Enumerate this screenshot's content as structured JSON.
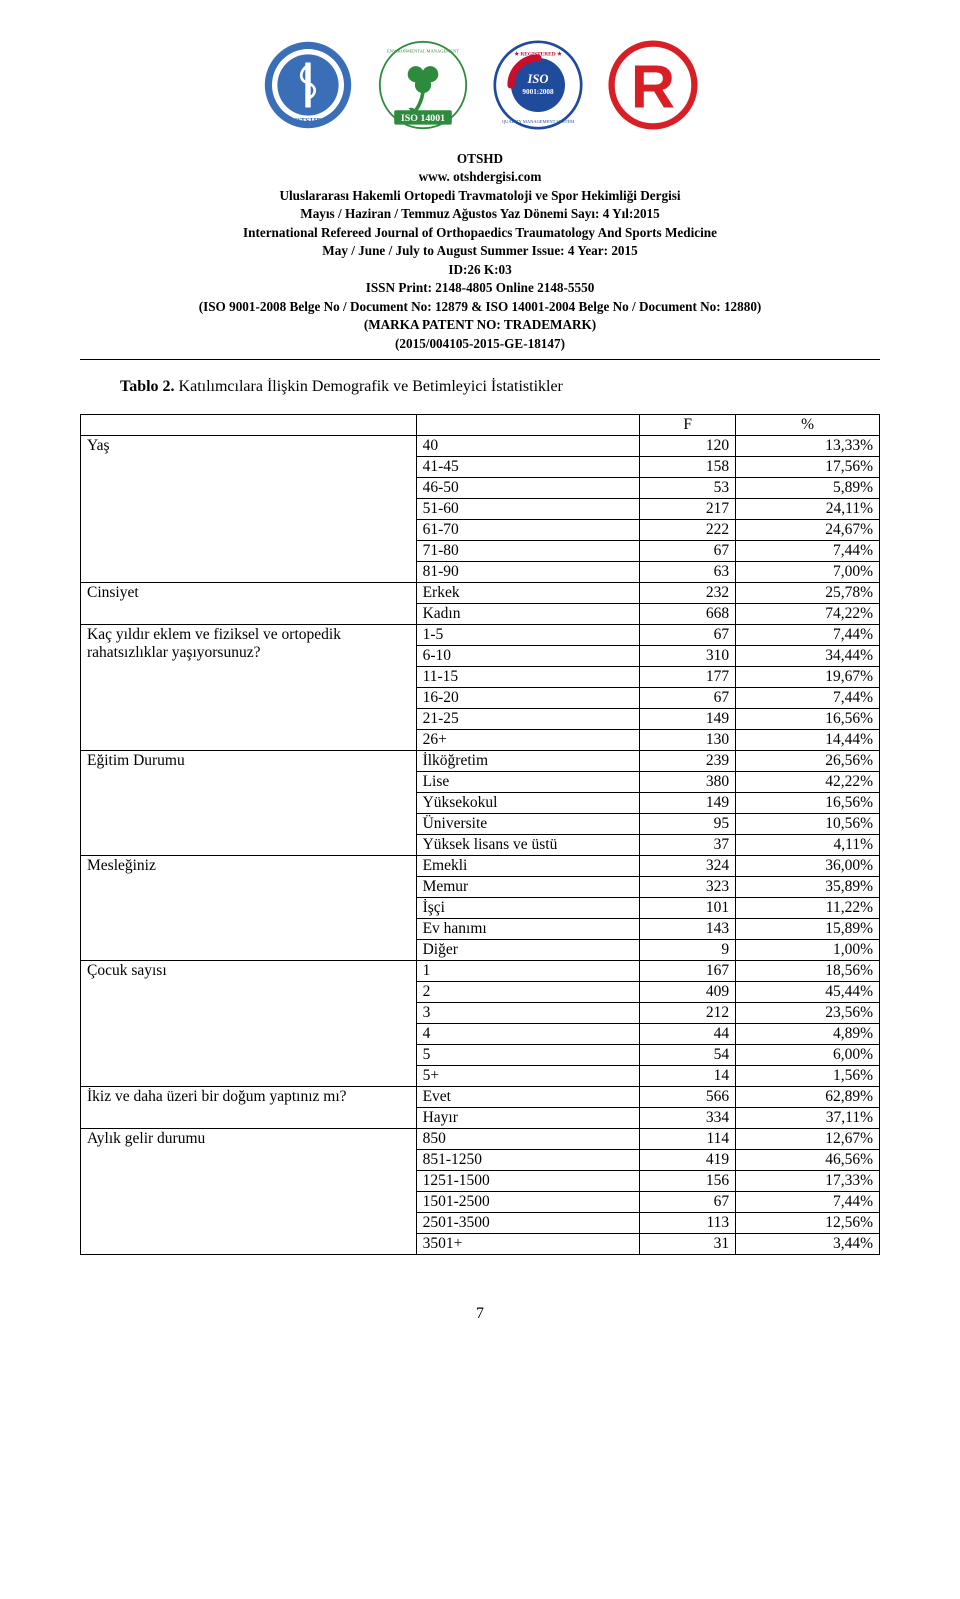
{
  "header": {
    "otshd": "OTSHD",
    "site": "www. otshdergisi.com",
    "line1": "Uluslararası Hakemli Ortopedi Travmatoloji ve Spor Hekimliği Dergisi",
    "line2": "Mayıs / Haziran / Temmuz  Ağustos Yaz Dönemi Sayı: 4 Yıl:2015",
    "line3": "International Refereed Journal of Orthopaedics Traumatology And Sports Medicine",
    "line4": "May / June / July to August Summer Issue: 4 Year: 2015",
    "id": "ID:26 K:03",
    "issn": "ISSN Print: 2148-4805 Online 2148-5550",
    "iso": "(ISO 9001-2008 Belge No / Document No: 12879 & ISO 14001-2004 Belge No / Document No: 12880)",
    "marka": "(MARKA PATENT NO: TRADEMARK)",
    "code": "(2015/004105-2015-GE-18147)"
  },
  "table_caption": {
    "label": "Tablo 2.",
    "text": " Katılımcılara İlişkin Demografik ve Betimleyici İstatistikler"
  },
  "table": {
    "header": {
      "f": "F",
      "p": "%"
    },
    "groups": [
      {
        "label": "Yaş",
        "rows": [
          {
            "cat": "40",
            "f": "120",
            "p": "13,33%"
          },
          {
            "cat": "41-45",
            "f": "158",
            "p": "17,56%"
          },
          {
            "cat": "46-50",
            "f": "53",
            "p": "5,89%"
          },
          {
            "cat": "51-60",
            "f": "217",
            "p": "24,11%"
          },
          {
            "cat": "61-70",
            "f": "222",
            "p": "24,67%"
          },
          {
            "cat": "71-80",
            "f": "67",
            "p": "7,44%"
          },
          {
            "cat": "81-90",
            "f": "63",
            "p": "7,00%"
          }
        ]
      },
      {
        "label": "Cinsiyet",
        "rows": [
          {
            "cat": "Erkek",
            "f": "232",
            "p": "25,78%"
          },
          {
            "cat": "Kadın",
            "f": "668",
            "p": "74,22%"
          }
        ]
      },
      {
        "label": "Kaç yıldır eklem ve fiziksel ve ortopedik rahatsızlıklar yaşıyorsunuz?",
        "rows": [
          {
            "cat": "1-5",
            "f": "67",
            "p": "7,44%"
          },
          {
            "cat": "6-10",
            "f": "310",
            "p": "34,44%"
          },
          {
            "cat": "11-15",
            "f": "177",
            "p": "19,67%"
          },
          {
            "cat": "16-20",
            "f": "67",
            "p": "7,44%"
          },
          {
            "cat": "21-25",
            "f": "149",
            "p": "16,56%"
          },
          {
            "cat": "26+",
            "f": "130",
            "p": "14,44%"
          }
        ]
      },
      {
        "label": "Eğitim Durumu",
        "rows": [
          {
            "cat": "İlköğretim",
            "f": "239",
            "p": "26,56%"
          },
          {
            "cat": "Lise",
            "f": "380",
            "p": "42,22%"
          },
          {
            "cat": "Yüksekokul",
            "f": "149",
            "p": "16,56%"
          },
          {
            "cat": "Üniversite",
            "f": "95",
            "p": "10,56%"
          },
          {
            "cat": "Yüksek lisans ve üstü",
            "f": "37",
            "p": "4,11%"
          }
        ]
      },
      {
        "label": "Mesleğiniz",
        "rows": [
          {
            "cat": "Emekli",
            "f": "324",
            "p": "36,00%"
          },
          {
            "cat": "Memur",
            "f": "323",
            "p": "35,89%"
          },
          {
            "cat": "İşçi",
            "f": "101",
            "p": "11,22%"
          },
          {
            "cat": "Ev hanımı",
            "f": "143",
            "p": "15,89%"
          },
          {
            "cat": "Diğer",
            "f": "9",
            "p": "1,00%"
          }
        ]
      },
      {
        "label": "Çocuk sayısı",
        "rows": [
          {
            "cat": "1",
            "f": "167",
            "p": "18,56%"
          },
          {
            "cat": "2",
            "f": "409",
            "p": "45,44%"
          },
          {
            "cat": "3",
            "f": "212",
            "p": "23,56%"
          },
          {
            "cat": "4",
            "f": "44",
            "p": "4,89%"
          },
          {
            "cat": "5",
            "f": "54",
            "p": "6,00%"
          },
          {
            "cat": "5+",
            "f": "14",
            "p": "1,56%"
          }
        ]
      },
      {
        "label": "İkiz ve daha üzeri bir doğum yaptınız mı?",
        "rows": [
          {
            "cat": "Evet",
            "f": "566",
            "p": "62,89%"
          },
          {
            "cat": "Hayır",
            "f": "334",
            "p": "37,11%"
          }
        ]
      },
      {
        "label": "Aylık gelir durumu",
        "rows": [
          {
            "cat": "850",
            "f": "114",
            "p": "12,67%"
          },
          {
            "cat": "851-1250",
            "f": "419",
            "p": "46,56%"
          },
          {
            "cat": "1251-1500",
            "f": "156",
            "p": "17,33%"
          },
          {
            "cat": "1501-2500",
            "f": "67",
            "p": "7,44%"
          },
          {
            "cat": "2501-3500",
            "f": "113",
            "p": "12,56%"
          },
          {
            "cat": "3501+",
            "f": "31",
            "p": "3,44%"
          }
        ]
      }
    ]
  },
  "page_number": "7",
  "logo_colors": {
    "otshd_blue": "#3a6fb7",
    "iso14001_green": "#2e8b3d",
    "iso9001_blue": "#1e4b9b",
    "iso9001_red": "#c8102e",
    "registered_red": "#d91f26"
  }
}
